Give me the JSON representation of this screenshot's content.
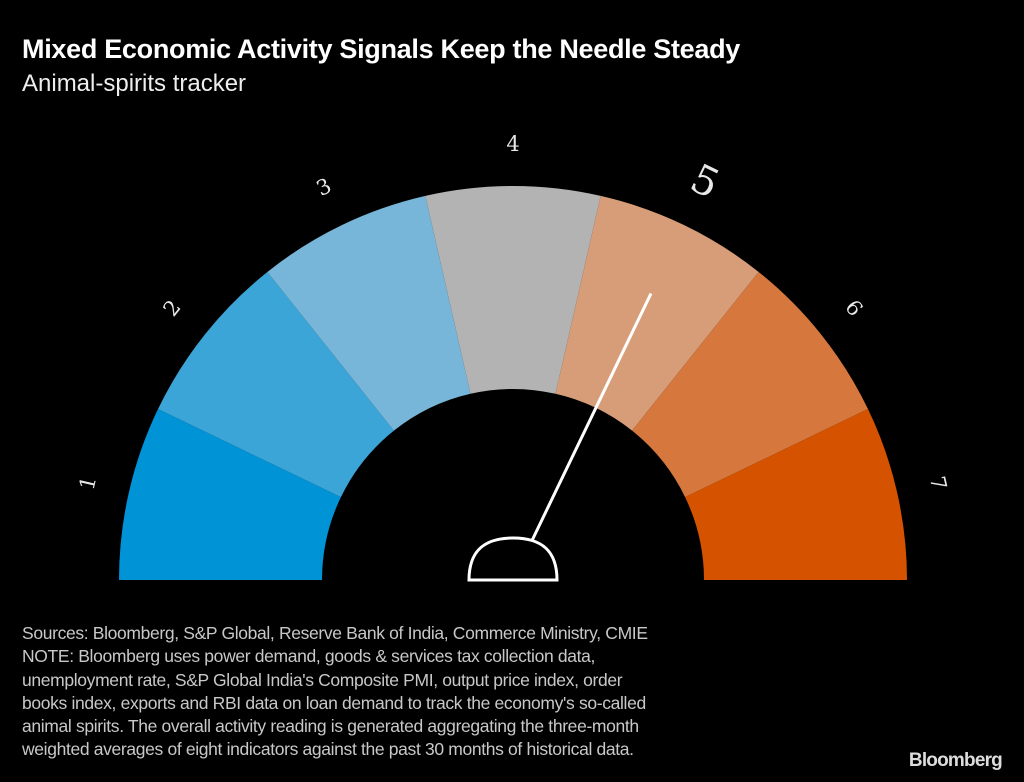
{
  "title": "Mixed Economic Activity Signals Keep the Needle Steady",
  "subtitle": "Animal-spirits tracker",
  "chart_data": {
    "type": "gauge",
    "title": "Mixed Economic Activity Signals Keep the Needle Steady",
    "subtitle": "Animal-spirits tracker",
    "segments": [
      {
        "label": "1",
        "color": "#0093d6"
      },
      {
        "label": "2",
        "color": "#3ca5d8"
      },
      {
        "label": "3",
        "color": "#77b6d8"
      },
      {
        "label": "4",
        "color": "#b3b3b3"
      },
      {
        "label": "5",
        "color": "#d79d79"
      },
      {
        "label": "6",
        "color": "#d6783d"
      },
      {
        "label": "7",
        "color": "#d55300"
      }
    ],
    "current_segment": "5",
    "needle_value": 4.5,
    "scale_range": [
      0,
      7
    ]
  },
  "notes": [
    "Sources: Bloomberg, S&P Global, Reserve Bank of India, Commerce Ministry, CMIE",
    "NOTE: Bloomberg uses power demand, goods & services tax collection data,",
    "unemployment rate, S&P Global India's Composite PMI, output price index, order",
    "books index, exports and RBI data on loan demand to track the economy's so-called",
    "animal spirits. The overall activity reading is generated aggregating the three-month",
    "weighted averages of eight indicators against the past 30 months of historical data."
  ],
  "logo": "Bloomberg"
}
